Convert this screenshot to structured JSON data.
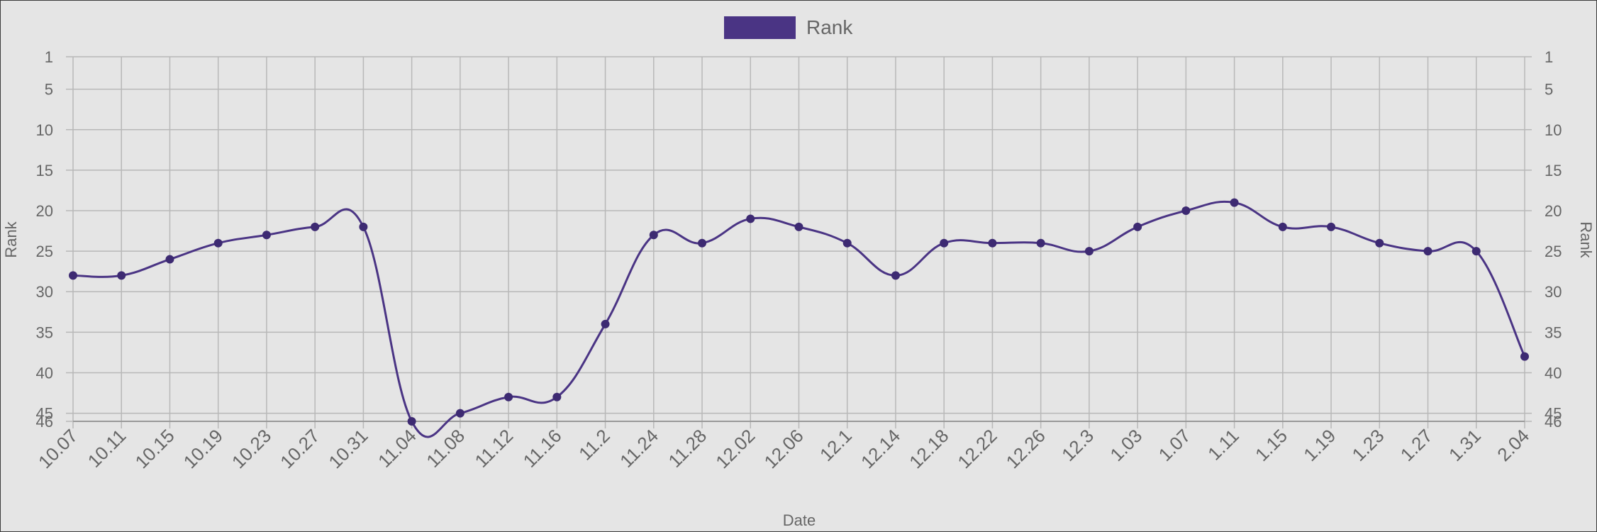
{
  "chart_data": {
    "type": "line",
    "legend": {
      "label": "Rank",
      "placement": "top-center"
    },
    "xlabel": "Date",
    "ylabel_left": "Rank",
    "ylabel_right": "Rank",
    "y_reversed": true,
    "ylim": [
      1,
      46
    ],
    "y_ticks": [
      1,
      5,
      10,
      15,
      20,
      25,
      30,
      35,
      40,
      45,
      46
    ],
    "grid": true,
    "colors": {
      "line": "#4a3484",
      "point": "#3d2a72",
      "grid": "#b8b8b8",
      "legend_box": "#4a3484"
    },
    "categories": [
      "10.07",
      "10.11",
      "10.15",
      "10.19",
      "10.23",
      "10.27",
      "10.31",
      "11.04",
      "11.08",
      "11.12",
      "11.16",
      "11.2",
      "11.24",
      "11.28",
      "12.02",
      "12.06",
      "12.1",
      "12.14",
      "12.18",
      "12.22",
      "12.26",
      "12.3",
      "1.03",
      "1.07",
      "1.11",
      "1.15",
      "1.19",
      "1.23",
      "1.27",
      "1.31",
      "2.04"
    ],
    "series": [
      {
        "name": "Rank",
        "values": [
          28,
          28,
          26,
          24,
          23,
          22,
          22,
          46,
          45,
          43,
          43,
          34,
          23,
          24,
          21,
          22,
          24,
          28,
          24,
          24,
          24,
          25,
          22,
          20,
          19,
          22,
          22,
          24,
          25,
          25,
          38
        ]
      }
    ]
  }
}
